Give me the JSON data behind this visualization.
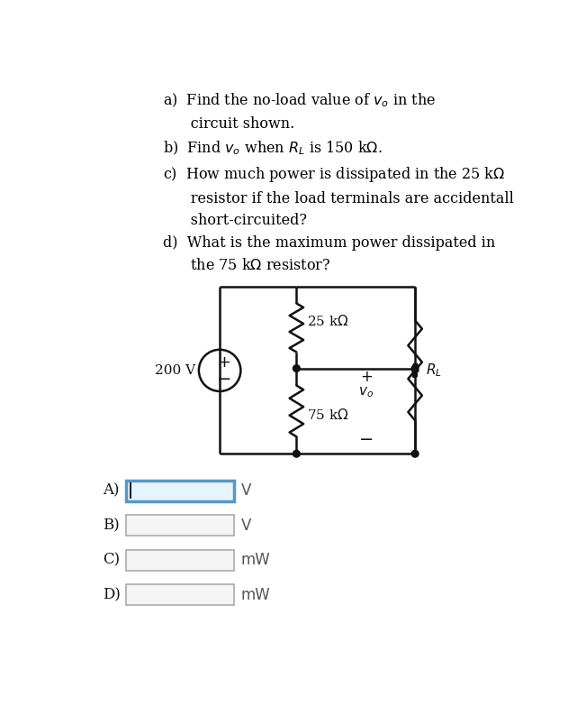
{
  "background_color": "#ffffff",
  "text_color": "#000000",
  "box_active_color": "#e8f4fb",
  "box_active_border": "#5599cc",
  "box_inactive_color": "#f5f5f5",
  "box_inactive_border": "#aaaaaa",
  "answer_labels": [
    "A)",
    "B)",
    "C)",
    "D)"
  ],
  "answer_units": [
    "V",
    "V",
    "mW",
    "mW"
  ],
  "src_voltage": "200 V",
  "r1_label": "25 kΩ",
  "r2_label": "75 kΩ",
  "rl_label": "R_L",
  "vo_label": "v_o"
}
